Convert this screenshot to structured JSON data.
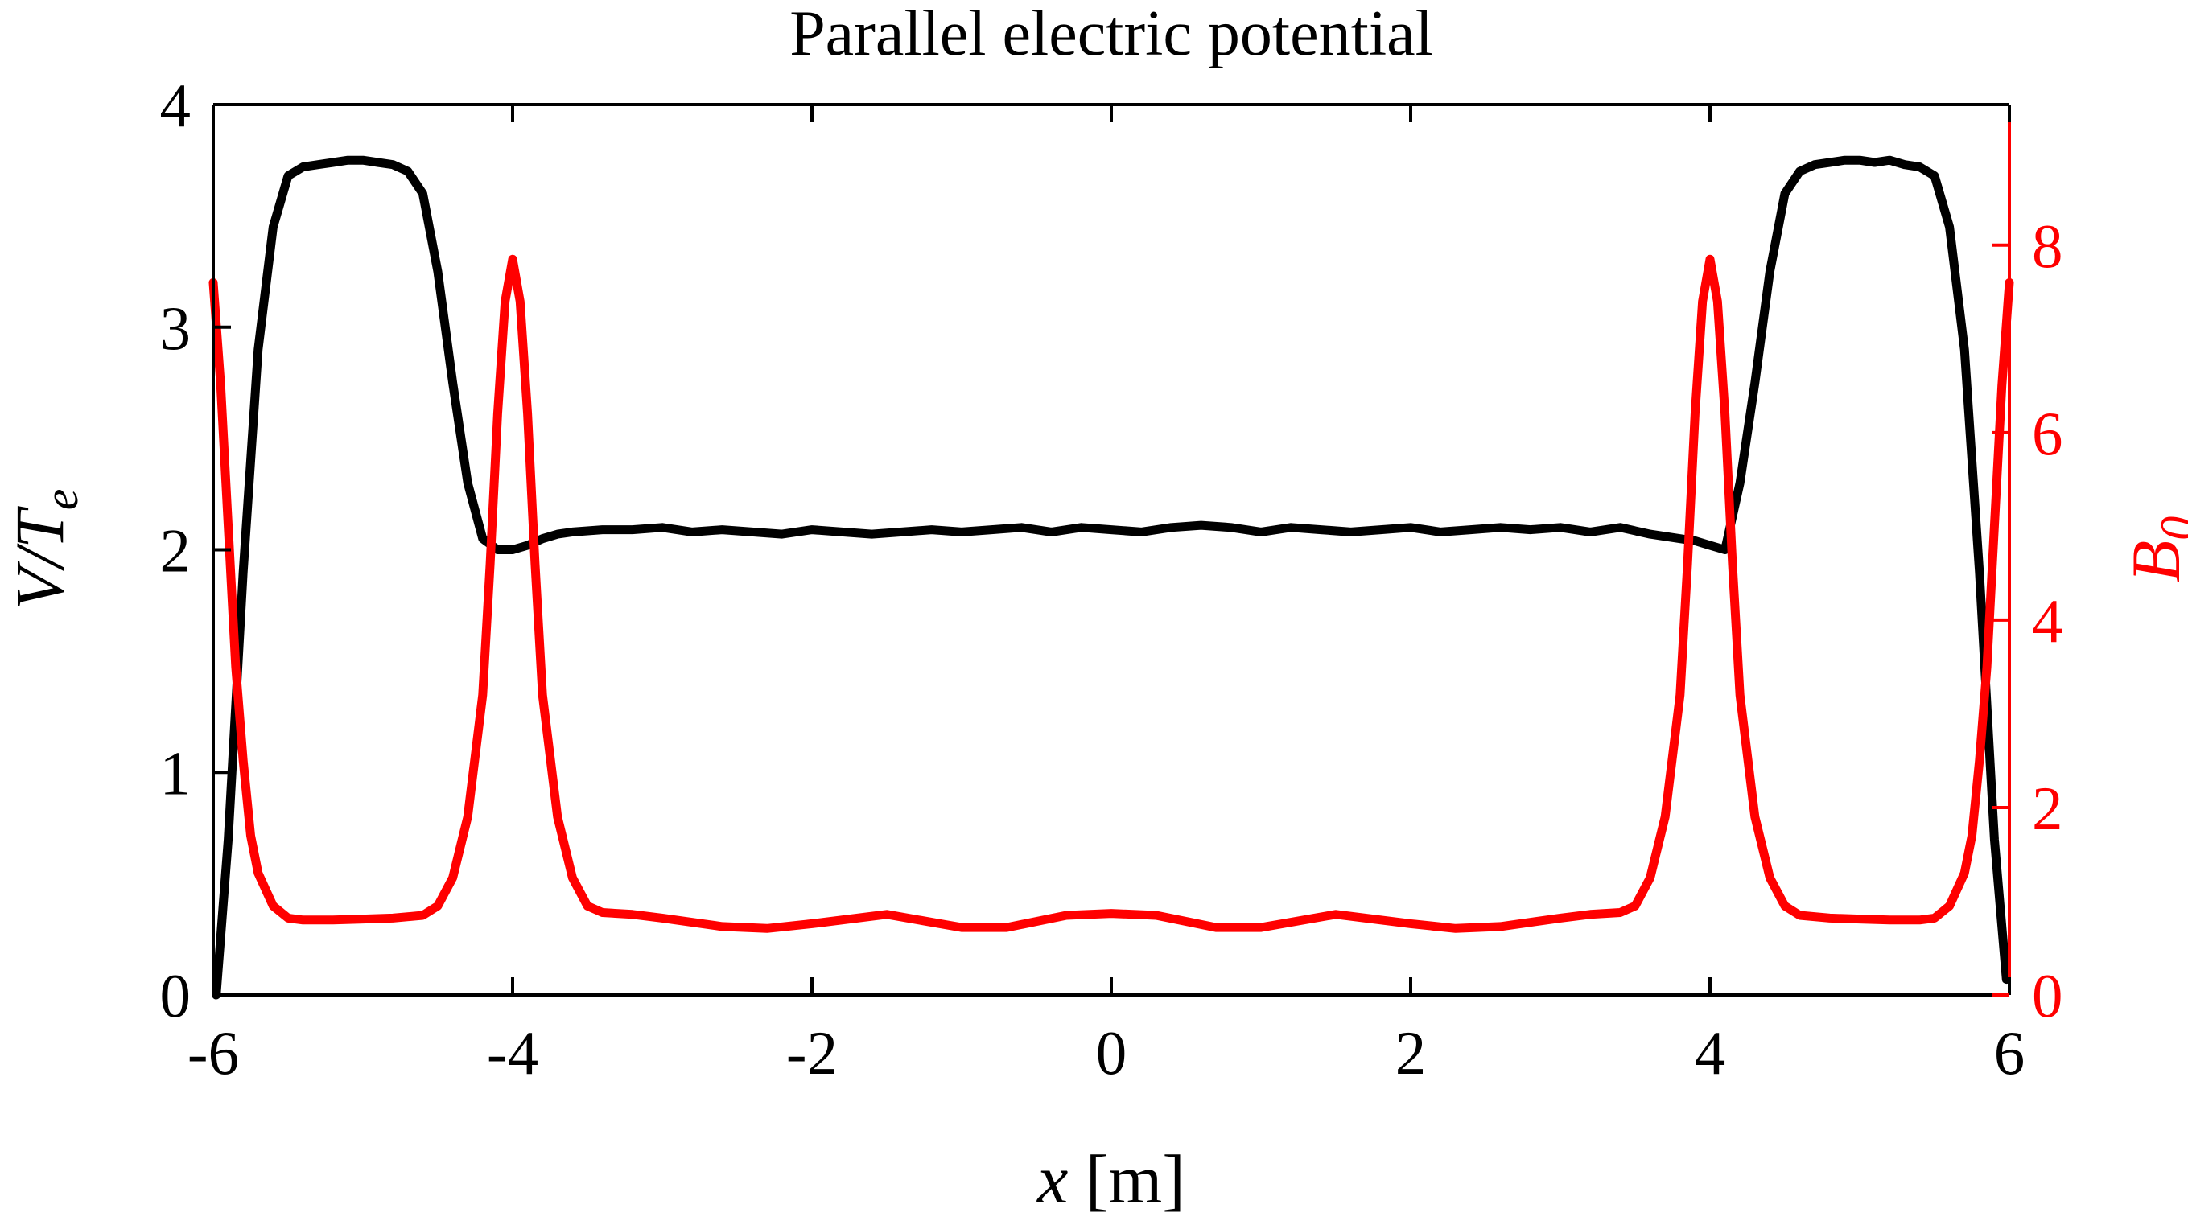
{
  "chart_data": {
    "type": "line",
    "title": "Parallel electric potential",
    "xlabel": "x [m]",
    "ylabel_left": "V/T_e",
    "ylabel_right": "B_0",
    "xlim": [
      -6,
      6
    ],
    "ylim_left": [
      0,
      4
    ],
    "ylim_right": [
      0,
      9.5
    ],
    "x_ticks": [
      -6,
      -4,
      -2,
      0,
      2,
      4,
      6
    ],
    "y_ticks_left": [
      0,
      1,
      2,
      3,
      4
    ],
    "y_ticks_right": [
      0,
      2,
      4,
      6,
      8
    ],
    "grid": false,
    "colors": {
      "left_series": "#000000",
      "right_series": "#ff0000",
      "axes": "#000000",
      "right_axis": "#ff0000"
    },
    "series": [
      {
        "axis": "left",
        "x": [
          -5.98,
          -5.9,
          -5.8,
          -5.7,
          -5.6,
          -5.5,
          -5.4,
          -5.3,
          -5.2,
          -5.1,
          -5.0,
          -4.9,
          -4.8,
          -4.7,
          -4.6,
          -4.5,
          -4.4,
          -4.3,
          -4.2,
          -4.1,
          -4.0,
          -3.9,
          -3.8,
          -3.7,
          -3.6,
          -3.4,
          -3.2,
          -3.0,
          -2.8,
          -2.6,
          -2.4,
          -2.2,
          -2.0,
          -1.8,
          -1.6,
          -1.4,
          -1.2,
          -1.0,
          -0.8,
          -0.6,
          -0.4,
          -0.2,
          0.0,
          0.2,
          0.4,
          0.6,
          0.8,
          1.0,
          1.2,
          1.4,
          1.6,
          1.8,
          2.0,
          2.2,
          2.4,
          2.6,
          2.8,
          3.0,
          3.2,
          3.4,
          3.6,
          3.8,
          3.9,
          4.0,
          4.1,
          4.2,
          4.3,
          4.4,
          4.5,
          4.6,
          4.7,
          4.8,
          4.9,
          5.0,
          5.1,
          5.2,
          5.3,
          5.4,
          5.5,
          5.6,
          5.7,
          5.8,
          5.9,
          5.98
        ],
        "y": [
          0.0,
          0.7,
          1.9,
          2.9,
          3.45,
          3.68,
          3.72,
          3.73,
          3.74,
          3.75,
          3.75,
          3.74,
          3.73,
          3.7,
          3.6,
          3.25,
          2.75,
          2.3,
          2.05,
          2.0,
          2.0,
          2.02,
          2.05,
          2.07,
          2.08,
          2.09,
          2.09,
          2.1,
          2.08,
          2.09,
          2.08,
          2.07,
          2.09,
          2.08,
          2.07,
          2.08,
          2.09,
          2.08,
          2.09,
          2.1,
          2.08,
          2.1,
          2.09,
          2.08,
          2.1,
          2.11,
          2.1,
          2.08,
          2.1,
          2.09,
          2.08,
          2.09,
          2.1,
          2.08,
          2.09,
          2.1,
          2.09,
          2.1,
          2.08,
          2.1,
          2.07,
          2.05,
          2.04,
          2.02,
          2.0,
          2.3,
          2.75,
          3.25,
          3.6,
          3.7,
          3.73,
          3.74,
          3.75,
          3.75,
          3.74,
          3.75,
          3.73,
          3.72,
          3.68,
          3.45,
          2.9,
          1.9,
          0.7,
          0.07
        ]
      },
      {
        "axis": "right",
        "x": [
          -6.0,
          -5.95,
          -5.9,
          -5.85,
          -5.8,
          -5.75,
          -5.7,
          -5.6,
          -5.5,
          -5.4,
          -5.3,
          -5.2,
          -5.0,
          -4.8,
          -4.6,
          -4.5,
          -4.4,
          -4.3,
          -4.2,
          -4.15,
          -4.1,
          -4.05,
          -4.0,
          -3.95,
          -3.9,
          -3.85,
          -3.8,
          -3.7,
          -3.6,
          -3.5,
          -3.4,
          -3.2,
          -3.0,
          -2.6,
          -2.3,
          -2.0,
          -1.5,
          -1.0,
          -0.7,
          -0.3,
          0.0,
          0.3,
          0.7,
          1.0,
          1.5,
          2.0,
          2.3,
          2.6,
          3.0,
          3.2,
          3.4,
          3.5,
          3.6,
          3.7,
          3.8,
          3.85,
          3.9,
          3.95,
          4.0,
          4.05,
          4.1,
          4.15,
          4.2,
          4.3,
          4.4,
          4.5,
          4.6,
          4.8,
          5.0,
          5.2,
          5.3,
          5.4,
          5.5,
          5.6,
          5.7,
          5.75,
          5.8,
          5.85,
          5.9,
          5.95,
          6.0
        ],
        "y": [
          7.6,
          6.5,
          5.0,
          3.5,
          2.5,
          1.7,
          1.3,
          0.95,
          0.82,
          0.8,
          0.8,
          0.8,
          0.81,
          0.82,
          0.85,
          0.95,
          1.25,
          1.9,
          3.2,
          4.6,
          6.2,
          7.4,
          7.85,
          7.4,
          6.2,
          4.6,
          3.2,
          1.9,
          1.25,
          0.95,
          0.88,
          0.86,
          0.82,
          0.73,
          0.71,
          0.76,
          0.86,
          0.72,
          0.72,
          0.85,
          0.87,
          0.85,
          0.72,
          0.72,
          0.86,
          0.76,
          0.71,
          0.73,
          0.82,
          0.86,
          0.88,
          0.95,
          1.25,
          1.9,
          3.2,
          4.6,
          6.2,
          7.4,
          7.85,
          7.4,
          6.2,
          4.6,
          3.2,
          1.9,
          1.25,
          0.95,
          0.85,
          0.82,
          0.81,
          0.8,
          0.8,
          0.8,
          0.82,
          0.95,
          1.3,
          1.7,
          2.5,
          3.5,
          5.0,
          6.5,
          7.6
        ]
      }
    ]
  }
}
